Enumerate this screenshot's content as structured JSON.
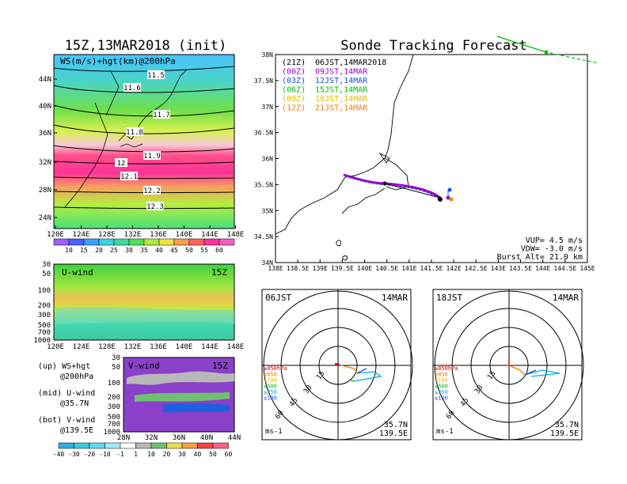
{
  "title_left": "15Z,13MAR2018 (init)",
  "title_right": "Sonde Tracking Forecast",
  "map_panel": {
    "label": "WS(m/s)+hgt(km)@200hPa",
    "lat_ticks": [
      "44N",
      "40N",
      "36N",
      "32N",
      "28N",
      "24N"
    ],
    "lon_ticks": [
      "120E",
      "124E",
      "128E",
      "132E",
      "136E",
      "140E",
      "144E",
      "148E"
    ],
    "contours": [
      "11.5",
      "11.6",
      "11.7",
      "11.8",
      "11.9",
      "12",
      "12.1",
      "12.2",
      "12.3"
    ],
    "colorbar": [
      "10",
      "15",
      "20",
      "25",
      "30",
      "35",
      "40",
      "45",
      "50",
      "55",
      "60"
    ]
  },
  "uwind_panel": {
    "label": "U-wind",
    "time": "15Z",
    "p_ticks": [
      "30",
      "50",
      "100",
      "200",
      "300",
      "500",
      "700",
      "1000"
    ],
    "lon_ticks": [
      "120E",
      "124E",
      "128E",
      "132E",
      "136E",
      "140E",
      "144E",
      "148E"
    ]
  },
  "vwind_panel": {
    "label": "V-wind",
    "time": "15Z",
    "p_ticks": [
      "30",
      "50",
      "100",
      "200",
      "300",
      "500",
      "700",
      "1000"
    ],
    "lat_ticks": [
      "28N",
      "32N",
      "36N",
      "40N",
      "44N"
    ],
    "colorbar": [
      "-40",
      "-30",
      "-20",
      "-10",
      "-1",
      "1",
      "10",
      "20",
      "30",
      "40",
      "50",
      "60"
    ]
  },
  "notes": [
    {
      "k": "(up) WS+hgt",
      "v": "@200hPa"
    },
    {
      "k": "(mid) U-wind",
      "v": "@35.7N"
    },
    {
      "k": "(bot) V-wind",
      "v": "@139.5E"
    }
  ],
  "track_panel": {
    "lat_ticks": [
      "38N",
      "37.5N",
      "37N",
      "36.5N",
      "36N",
      "35.5N",
      "35N",
      "34.5N",
      "34N"
    ],
    "lon_ticks": [
      "138E",
      "138.5E",
      "139E",
      "139.5E",
      "140E",
      "140.5E",
      "141E",
      "141.5E",
      "142E",
      "142.5E",
      "143E",
      "143.5E",
      "144E",
      "144.5E",
      "145E"
    ],
    "legend": [
      {
        "code": "(21Z)",
        "time": "06JST,14MAR2018",
        "color": "#000000"
      },
      {
        "code": "(00Z)",
        "time": "09JST,14MAR",
        "color": "#a000c8"
      },
      {
        "code": "(03Z)",
        "time": "12JST,14MAR",
        "color": "#2050e0"
      },
      {
        "code": "(06Z)",
        "time": "15JST,14MAR",
        "color": "#00c000"
      },
      {
        "code": "(09Z)",
        "time": "18JST,14MAR",
        "color": "#e0c000"
      },
      {
        "code": "(12Z)",
        "time": "21JST,14MAR",
        "color": "#f08000"
      }
    ],
    "stats": [
      "VUP= 4.5 m/s",
      "VDW= -3.0 m/s",
      "Burst Alt= 21.0 km"
    ]
  },
  "hodographs": [
    {
      "time": "06JST",
      "date": "14MAR",
      "lat": "35.7N",
      "lon": "139.5E",
      "unit": "ms-1"
    },
    {
      "time": "18JST",
      "date": "14MAR",
      "lat": "35.7N",
      "lon": "139.5E",
      "unit": "ms-1"
    }
  ],
  "ring_labels": [
    "15",
    "30",
    "45",
    "60"
  ],
  "pressure_legend": [
    {
      "t": "≥850hPa",
      "c": "#e00000"
    },
    {
      "t": "≤850",
      "c": "#f08000"
    },
    {
      "t": "≤700",
      "c": "#e0c000"
    },
    {
      "t": "≤500",
      "c": "#00c000"
    },
    {
      "t": "≤250",
      "c": "#00b0d0"
    },
    {
      "t": "≤100",
      "c": "#2050e0"
    }
  ],
  "chart_data": {
    "type": "heatmap",
    "title": "Sonde Tracking Forecast",
    "track_lon": [
      139.4,
      139.8,
      140.2,
      140.5,
      140.9,
      141.3,
      141.6,
      141.75
    ],
    "track_lat": [
      35.72,
      35.62,
      35.55,
      35.5,
      35.45,
      35.4,
      35.3,
      35.2
    ]
  }
}
